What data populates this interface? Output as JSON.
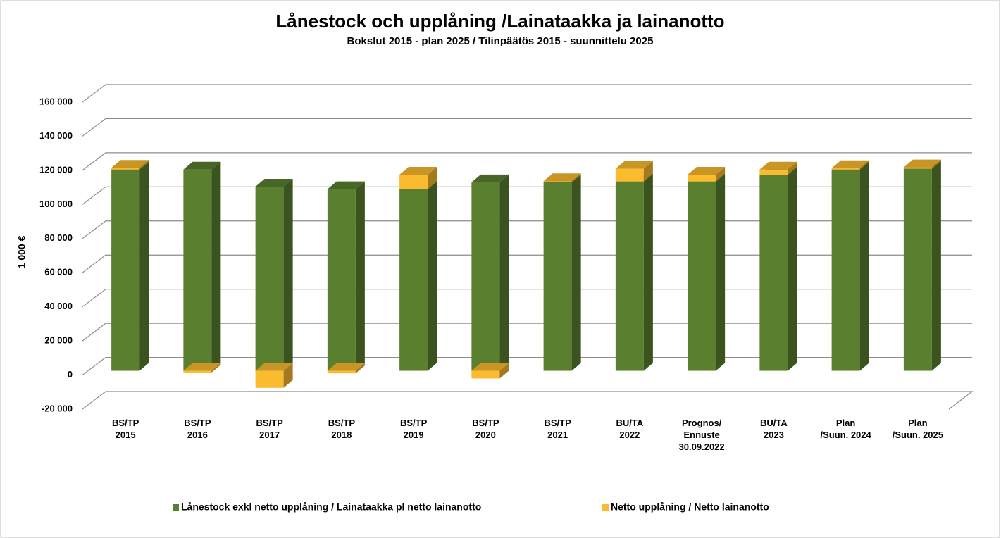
{
  "chart_data": {
    "type": "bar3d_stacked",
    "title": "Lånestock och upplåning /Lainataakka ja lainanotto",
    "subtitle": "Bokslut 2015 - plan 2025 / Tilinpäätös 2015 -  suunnittelu 2025",
    "y_label": "1 000 €",
    "categories": [
      "BS/TP\n2015",
      "BS/TP\n2016",
      "BS/TP\n2017",
      "BS/TP\n2018",
      "BS/TP\n2019",
      "BS/TP\n2020",
      "BS/TP\n2021",
      "BU/TA\n2022",
      "Prognos/\nEnnuste\n30.09.2022",
      "BU/TA\n2023",
      "Plan\n/Suun. 2024",
      "Plan\n/Suun. 2025"
    ],
    "series": [
      {
        "name": "Lånestock exkl netto upplåning / Lainataakka pl netto lainanotto",
        "color": "#5a7f2e",
        "values": [
          118000,
          118000,
          108000,
          106500,
          106500,
          110500,
          110500,
          111000,
          111000,
          115000,
          118000,
          118500
        ]
      },
      {
        "name": "Netto upplåning / Netto lainanotto",
        "color": "#fbbb2e",
        "values": [
          1000,
          -1000,
          -10000,
          -1500,
          8500,
          -4500,
          700,
          7500,
          4000,
          3000,
          800,
          800
        ]
      }
    ],
    "ylim": [
      -20000,
      160000
    ],
    "yticks": [
      {
        "value": -20000,
        "label": "-20 000"
      },
      0,
      {
        "value": 20000,
        "label": "20 000"
      },
      {
        "value": 40000,
        "label": "40 000"
      },
      {
        "value": 60000,
        "label": "60 000"
      },
      {
        "value": 80000,
        "label": "80 000"
      },
      {
        "value": 100000,
        "label": "100 000"
      },
      {
        "value": 120000,
        "label": "120 000"
      },
      {
        "value": 140000,
        "label": "140 000"
      },
      {
        "value": 160000,
        "label": "160 000"
      }
    ],
    "grid": true,
    "legend": "bottom"
  }
}
